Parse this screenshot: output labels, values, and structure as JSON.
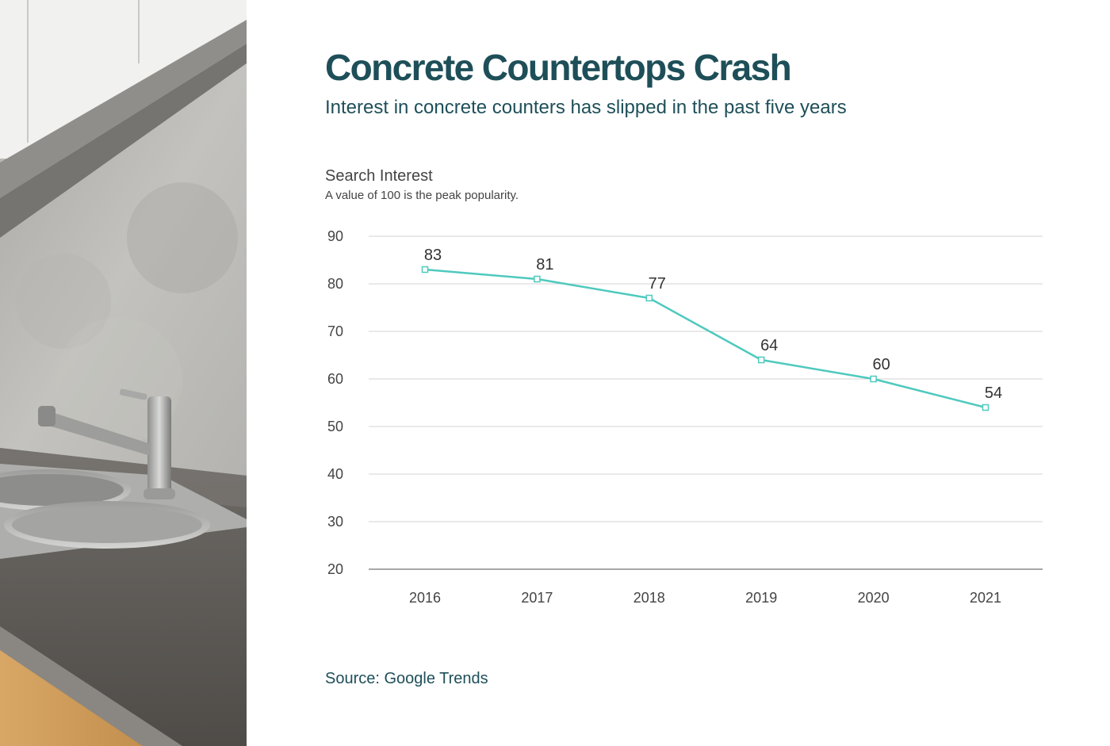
{
  "title": "Concrete Countertops Crash",
  "subtitle": "Interest in concrete counters has slipped in the past five years",
  "source": "Source: Google Trends",
  "photo": {
    "subject": "kitchen-sink-concrete-counter"
  },
  "colors": {
    "title": "#1e4f59",
    "line": "#4fc9be",
    "grid": "#d3d3d3",
    "axis": "#8a8a8a",
    "text": "#444444"
  },
  "chart_data": {
    "type": "line",
    "title": "Search Interest",
    "subtitle": "A value of 100 is the peak popularity.",
    "xlabel": "",
    "ylabel": "",
    "x": [
      "2016",
      "2017",
      "2018",
      "2019",
      "2020",
      "2021"
    ],
    "series": [
      {
        "values": [
          83,
          81,
          77,
          64,
          60,
          54
        ]
      }
    ],
    "ylim": [
      20,
      90
    ],
    "yticks": [
      20,
      30,
      40,
      50,
      60,
      70,
      80,
      90
    ],
    "grid": true,
    "legend": "none",
    "data_labels": true,
    "markers": "hollow-square"
  }
}
